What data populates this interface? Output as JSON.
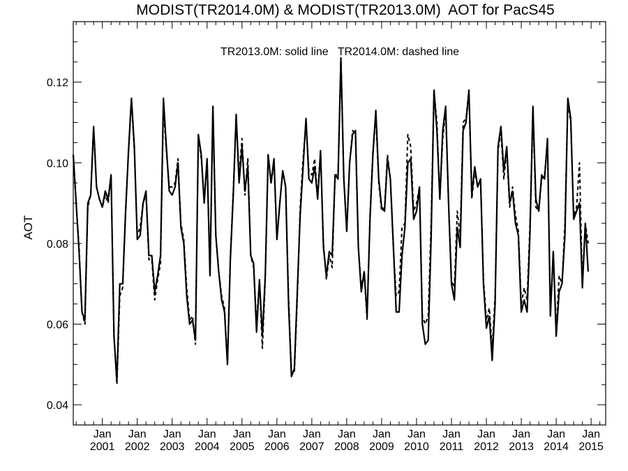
{
  "chart_data": {
    "type": "line",
    "title": "MODIST(TR2014.0M) & MODIST(TR2013.0M)  AOT for PacS45",
    "ylabel": "AOT",
    "xlabel": "",
    "annotation": "TR2013.0M: solid line   TR2014.0M: dashed line",
    "ylim": [
      0.035,
      0.135
    ],
    "yticks": [
      0.04,
      0.06,
      0.08,
      0.1,
      0.12
    ],
    "ytick_labels": [
      "0.04",
      "0.06",
      "0.08",
      "0.10",
      "0.12"
    ],
    "xlim": [
      2000.167,
      2015.417
    ],
    "xticks": [
      {
        "month": "Jan",
        "year": "2001",
        "x": 2001.0
      },
      {
        "month": "Jan",
        "year": "2002",
        "x": 2002.0
      },
      {
        "month": "Jan",
        "year": "2003",
        "x": 2003.0
      },
      {
        "month": "Jan",
        "year": "2004",
        "x": 2004.0
      },
      {
        "month": "Jan",
        "year": "2005",
        "x": 2005.0
      },
      {
        "month": "Jan",
        "year": "2006",
        "x": 2006.0
      },
      {
        "month": "Jan",
        "year": "2007",
        "x": 2007.0
      },
      {
        "month": "Jan",
        "year": "2008",
        "x": 2008.0
      },
      {
        "month": "Jan",
        "year": "2009",
        "x": 2009.0
      },
      {
        "month": "Jan",
        "year": "2010",
        "x": 2010.0
      },
      {
        "month": "Jan",
        "year": "2011",
        "x": 2011.0
      },
      {
        "month": "Jan",
        "year": "2012",
        "x": 2012.0
      },
      {
        "month": "Jan",
        "year": "2013",
        "x": 2013.0
      },
      {
        "month": "Jan",
        "year": "2014",
        "x": 2014.0
      },
      {
        "month": "Jan",
        "year": "2015",
        "x": 2015.0
      }
    ],
    "series": [
      {
        "name": "TR2013.0M",
        "style": "solid",
        "color": "#000000",
        "start": "2000-03",
        "values": [
          0.102,
          0.09,
          0.078,
          0.063,
          0.061,
          0.09,
          0.092,
          0.109,
          0.094,
          0.091,
          0.089,
          0.093,
          0.091,
          0.097,
          0.057,
          0.046,
          0.07,
          0.07,
          0.088,
          0.103,
          0.116,
          0.104,
          0.081,
          0.082,
          0.09,
          0.093,
          0.077,
          0.077,
          0.068,
          0.072,
          0.077,
          0.116,
          0.104,
          0.093,
          0.092,
          0.094,
          0.1,
          0.084,
          0.08,
          0.067,
          0.06,
          0.061,
          0.056,
          0.107,
          0.102,
          0.09,
          0.101,
          0.072,
          0.114,
          0.082,
          0.073,
          0.066,
          0.063,
          0.05,
          0.076,
          0.092,
          0.112,
          0.095,
          0.104,
          0.093,
          0.099,
          0.077,
          0.075,
          0.058,
          0.071,
          0.057,
          0.072,
          0.102,
          0.095,
          0.101,
          0.081,
          0.09,
          0.098,
          0.094,
          0.065,
          0.047,
          0.049,
          0.068,
          0.087,
          0.099,
          0.111,
          0.096,
          0.095,
          0.099,
          0.091,
          0.103,
          0.079,
          0.072,
          0.078,
          0.077,
          0.097,
          0.096,
          0.126,
          0.096,
          0.083,
          0.1,
          0.107,
          0.108,
          0.079,
          0.068,
          0.073,
          0.062,
          0.086,
          0.102,
          0.113,
          0.096,
          0.089,
          0.088,
          0.101,
          0.096,
          0.08,
          0.063,
          0.063,
          0.077,
          0.084,
          0.1,
          0.101,
          0.086,
          0.088,
          0.094,
          0.06,
          0.055,
          0.056,
          0.081,
          0.118,
          0.108,
          0.091,
          0.108,
          0.114,
          0.09,
          0.07,
          0.066,
          0.084,
          0.079,
          0.108,
          0.11,
          0.118,
          0.092,
          0.099,
          0.094,
          0.096,
          0.07,
          0.059,
          0.062,
          0.051,
          0.065,
          0.104,
          0.109,
          0.098,
          0.104,
          0.09,
          0.093,
          0.085,
          0.082,
          0.063,
          0.066,
          0.063,
          0.083,
          0.114,
          0.091,
          0.088,
          0.097,
          0.096,
          0.106,
          0.062,
          0.078,
          0.057,
          0.068,
          0.07,
          0.082,
          0.116,
          0.111,
          0.086,
          0.088,
          0.09,
          0.069,
          0.085,
          0.073
        ]
      },
      {
        "name": "TR2014.0M",
        "style": "dashed",
        "color": "#000000",
        "start": "2000-03",
        "values": [
          0.102,
          0.09,
          0.079,
          0.063,
          0.06,
          0.089,
          0.092,
          0.109,
          0.094,
          0.091,
          0.089,
          0.092,
          0.09,
          0.097,
          0.057,
          0.045,
          0.067,
          0.069,
          0.088,
          0.103,
          0.116,
          0.103,
          0.082,
          0.084,
          0.09,
          0.092,
          0.076,
          0.076,
          0.066,
          0.071,
          0.075,
          0.114,
          0.103,
          0.094,
          0.094,
          0.095,
          0.101,
          0.085,
          0.081,
          0.069,
          0.061,
          0.062,
          0.055,
          0.107,
          0.101,
          0.091,
          0.101,
          0.072,
          0.114,
          0.082,
          0.073,
          0.067,
          0.064,
          0.05,
          0.077,
          0.093,
          0.111,
          0.097,
          0.106,
          0.092,
          0.101,
          0.077,
          0.074,
          0.06,
          0.071,
          0.054,
          0.071,
          0.102,
          0.095,
          0.1,
          0.081,
          0.09,
          0.098,
          0.094,
          0.067,
          0.048,
          0.048,
          0.066,
          0.089,
          0.101,
          0.11,
          0.098,
          0.097,
          0.101,
          0.091,
          0.103,
          0.08,
          0.071,
          0.077,
          0.074,
          0.097,
          0.097,
          0.126,
          0.096,
          0.083,
          0.1,
          0.108,
          0.107,
          0.079,
          0.069,
          0.073,
          0.061,
          0.087,
          0.103,
          0.112,
          0.095,
          0.088,
          0.089,
          0.102,
          0.096,
          0.079,
          0.067,
          0.068,
          0.084,
          0.085,
          0.107,
          0.104,
          0.088,
          0.09,
          0.094,
          0.062,
          0.06,
          0.062,
          0.085,
          0.118,
          0.11,
          0.091,
          0.106,
          0.113,
          0.09,
          0.071,
          0.069,
          0.088,
          0.082,
          0.11,
          0.111,
          0.118,
          0.091,
          0.098,
          0.094,
          0.096,
          0.071,
          0.061,
          0.064,
          0.054,
          0.067,
          0.103,
          0.108,
          0.096,
          0.103,
          0.089,
          0.094,
          0.087,
          0.083,
          0.065,
          0.069,
          0.066,
          0.085,
          0.113,
          0.089,
          0.088,
          0.096,
          0.097,
          0.105,
          0.063,
          0.078,
          0.058,
          0.072,
          0.07,
          0.085,
          0.115,
          0.11,
          0.087,
          0.089,
          0.1,
          0.07,
          0.085,
          0.08
        ]
      }
    ]
  }
}
